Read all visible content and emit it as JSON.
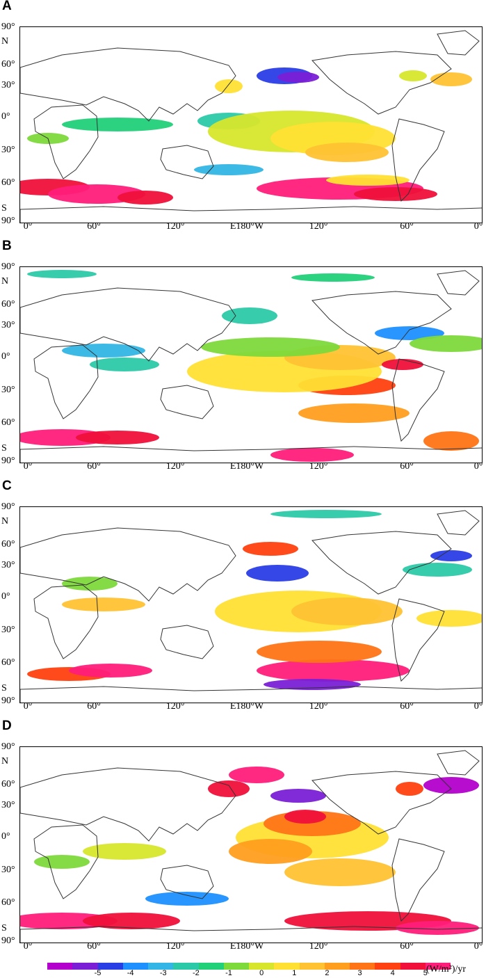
{
  "panels": [
    {
      "letter": "A"
    },
    {
      "letter": "B"
    },
    {
      "letter": "C"
    },
    {
      "letter": "D"
    }
  ],
  "axes": {
    "lat_labels": [
      "90°",
      "N",
      "60°",
      "30°",
      "0°",
      "30°",
      "60°",
      "S",
      "90°"
    ],
    "lon_labels": [
      "0°",
      "60°",
      "120°",
      "E180°W",
      "120°",
      "60°",
      "0°"
    ]
  },
  "colorbar": {
    "ticks": [
      "-5",
      "-4",
      "-3",
      "-2",
      "-1",
      "0",
      "1",
      "2",
      "3",
      "4",
      "5"
    ],
    "unit": "(W/m²)/yr",
    "colors": [
      "#b300cc",
      "#7a1fd6",
      "#2a3ee6",
      "#1e90ff",
      "#33b5e5",
      "#2cc9a8",
      "#22d07a",
      "#7ed93b",
      "#d7e62c",
      "#ffe033",
      "#ffc233",
      "#ff9e1f",
      "#ff7416",
      "#ff4010",
      "#f0103a",
      "#ff1e7a"
    ]
  },
  "colors": {
    "land_outline": "#333333",
    "frame": "#000000"
  }
}
